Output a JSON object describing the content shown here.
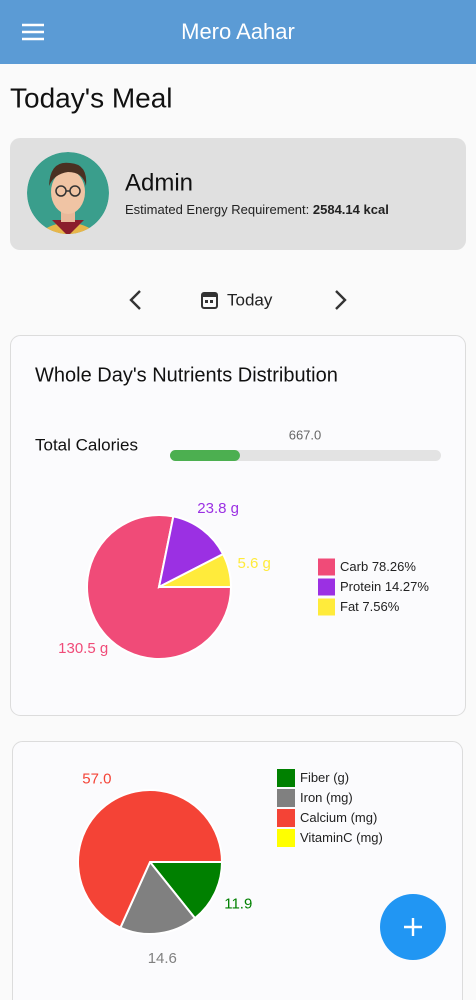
{
  "app_bar": {
    "title": "Mero Aahar"
  },
  "heading": "Today's Meal",
  "profile": {
    "name": "Admin",
    "energy_label": "Estimated Energy Requirement:",
    "energy_value": 2584.14,
    "energy_unit": "kcal"
  },
  "date_nav": {
    "label": "Today"
  },
  "calorie_bar": {
    "label": "Total Calories",
    "value": 667,
    "value_label": "667.0",
    "color": "#4caf50"
  },
  "chart_data": [
    {
      "type": "pie",
      "title": "Whole Day's Nutrients Distribution",
      "categories": [
        "Carb",
        "Protein",
        "Fat"
      ],
      "values": [
        78.26,
        14.27,
        7.56
      ],
      "value_labels": [
        "78.26%",
        "14.27%",
        "7.56%"
      ],
      "slice_labels": [
        "130.5 g",
        "23.8 g",
        "5.6 g"
      ],
      "colors": [
        "#f04b78",
        "#9b30e3",
        "#ffeb3b"
      ]
    },
    {
      "type": "pie",
      "categories": [
        "Fiber (g)",
        "Iron (mg)",
        "Calcium (mg)",
        "VitaminC (mg)"
      ],
      "values": [
        11.9,
        14.6,
        57,
        0
      ],
      "value_labels": [
        "11.9",
        "14.6",
        "57.0",
        null
      ],
      "colors": [
        "#008000",
        "#808080",
        "#f44336",
        "#ffff00"
      ]
    }
  ]
}
